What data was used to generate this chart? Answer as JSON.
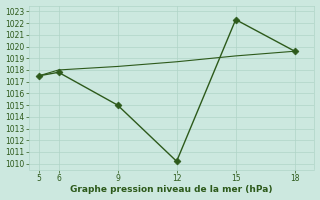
{
  "x": [
    5,
    6,
    9,
    12,
    15,
    18
  ],
  "y_main": [
    1017.5,
    1017.8,
    1015.0,
    1010.2,
    1022.3,
    1019.6
  ],
  "y_smooth": [
    1017.5,
    1018.0,
    1018.3,
    1018.7,
    1019.2,
    1019.6
  ],
  "line_color": "#2d5a1b",
  "line_color2": "#2d5a1b",
  "bg_color": "#cce8df",
  "grid_color": "#b0d4c8",
  "xlabel": "Graphe pression niveau de la mer (hPa)",
  "xlabel_color": "#2d5a1b",
  "ylim": [
    1009.5,
    1023.5
  ],
  "xlim": [
    4.5,
    19.0
  ],
  "xticks": [
    5,
    6,
    9,
    12,
    15,
    18
  ],
  "yticks": [
    1010,
    1011,
    1012,
    1013,
    1014,
    1015,
    1016,
    1017,
    1018,
    1019,
    1020,
    1021,
    1022,
    1023
  ],
  "marker": "D",
  "markersize": 3.5,
  "linewidth_main": 1.0,
  "linewidth_smooth": 0.8
}
